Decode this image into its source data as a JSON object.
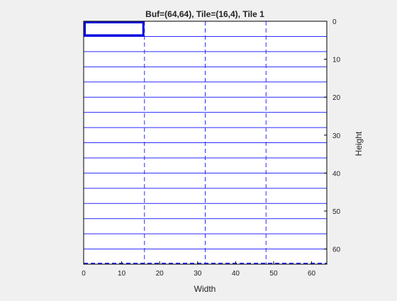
{
  "chart_data": {
    "type": "heatmap",
    "title": "Buf=(64,64), Tile=(16,4), Tile 1",
    "xlabel": "Width",
    "ylabel": "Height",
    "xlim": [
      0,
      64
    ],
    "ylim": [
      0,
      64
    ],
    "y_reversed": true,
    "y_axis_side": "right",
    "x_ticks": [
      0,
      10,
      20,
      30,
      40,
      50,
      60
    ],
    "y_ticks": [
      0,
      10,
      20,
      30,
      40,
      50,
      60
    ],
    "buffer": {
      "width": 64,
      "height": 64
    },
    "tile": {
      "width": 16,
      "height": 4
    },
    "highlighted_tile": {
      "index": 1,
      "x": 0,
      "y": 0,
      "width": 16,
      "height": 4
    },
    "colors": {
      "grid": "#2a2aff",
      "highlight": "#0000dd",
      "axes": "#000000",
      "background": "#ffffff",
      "figure": "#f0f0f0"
    }
  }
}
